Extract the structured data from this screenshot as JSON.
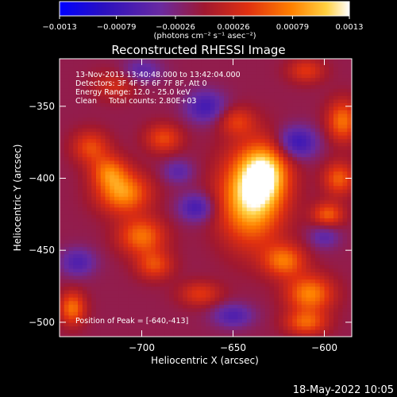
{
  "chart_data": {
    "type": "heatmap",
    "title": "Reconstructed RHESSI Image",
    "xlabel": "Heliocentric X (arcsec)",
    "ylabel": "Heliocentric Y (arcsec)",
    "xlim": [
      -745,
      -585
    ],
    "ylim": [
      -510,
      -317
    ],
    "x_ticks": [
      -700,
      -650,
      -600
    ],
    "y_ticks": [
      -500,
      -450,
      -400,
      -350
    ],
    "x_tick_labels": [
      "−700",
      "−650",
      "−600"
    ],
    "y_tick_labels": [
      "−500",
      "−450",
      "−400",
      "−350"
    ],
    "colorbar": {
      "min": -0.0013,
      "max": 0.0013,
      "ticks": [
        -0.0013,
        -0.00079,
        -0.00026,
        0.00026,
        0.00079,
        0.0013
      ],
      "tick_labels": [
        "−0.0013",
        "−0.00079",
        "−0.00026",
        "0.00026",
        "0.00079",
        "0.0013"
      ],
      "unit_label": "(photons cm⁻² s⁻¹ asec⁻²)",
      "colors": [
        "#0000ff",
        "#4a1b9a",
        "#7a2a9e",
        "#b0201a",
        "#e0401a",
        "#ff8000",
        "#ffc000",
        "#ffffff"
      ]
    },
    "annotations": [
      "13-Nov-2013 13:40:48.000 to 13:42:04.000",
      "Detectors: 3F 4F 5F 6F 7F 8F, Att 0",
      "Energy Range: 12.0 - 25.0 keV",
      "Clean     Total counts: 2.80E+03"
    ],
    "peak_label": "Position of Peak = [-640,-413]",
    "peak": {
      "x": -640,
      "y": -413,
      "value": 0.0013
    },
    "sources": [
      {
        "x": -640,
        "y": -413,
        "value": 0.0013,
        "sx": 12,
        "sy": 22
      },
      {
        "x": -632,
        "y": -395,
        "value": 0.0009,
        "sx": 9,
        "sy": 14
      },
      {
        "x": -710,
        "y": -410,
        "value": 0.00095,
        "sx": 10,
        "sy": 10
      },
      {
        "x": -700,
        "y": -440,
        "value": 0.0008,
        "sx": 9,
        "sy": 9
      },
      {
        "x": -718,
        "y": -395,
        "value": 0.0007,
        "sx": 7,
        "sy": 8
      },
      {
        "x": -688,
        "y": -372,
        "value": 0.0006,
        "sx": 7,
        "sy": 7
      },
      {
        "x": -693,
        "y": -460,
        "value": 0.0006,
        "sx": 7,
        "sy": 7
      },
      {
        "x": -608,
        "y": -480,
        "value": 0.0009,
        "sx": 9,
        "sy": 9
      },
      {
        "x": -622,
        "y": -457,
        "value": 0.0008,
        "sx": 8,
        "sy": 8
      },
      {
        "x": -610,
        "y": -500,
        "value": 0.0007,
        "sx": 8,
        "sy": 6
      },
      {
        "x": -590,
        "y": -360,
        "value": 0.0008,
        "sx": 6,
        "sy": 10
      },
      {
        "x": -592,
        "y": -400,
        "value": 0.0007,
        "sx": 6,
        "sy": 8
      },
      {
        "x": -598,
        "y": -425,
        "value": 0.0007,
        "sx": 6,
        "sy": 6
      },
      {
        "x": -728,
        "y": -378,
        "value": 0.0006,
        "sx": 7,
        "sy": 8
      },
      {
        "x": -738,
        "y": -490,
        "value": 0.0008,
        "sx": 5,
        "sy": 8
      },
      {
        "x": -668,
        "y": -480,
        "value": 0.0005,
        "sx": 8,
        "sy": 6
      },
      {
        "x": -648,
        "y": -360,
        "value": 0.0005,
        "sx": 7,
        "sy": 7
      },
      {
        "x": -610,
        "y": -325,
        "value": 0.0005,
        "sx": 7,
        "sy": 6
      },
      {
        "x": -715,
        "y": -335,
        "value": 0.0004,
        "sx": 8,
        "sy": 7
      },
      {
        "x": -670,
        "y": -420,
        "value": -0.0006,
        "sx": 7,
        "sy": 7
      },
      {
        "x": -615,
        "y": -375,
        "value": -0.0007,
        "sx": 8,
        "sy": 8
      },
      {
        "x": -665,
        "y": -350,
        "value": -0.0006,
        "sx": 8,
        "sy": 8
      },
      {
        "x": -735,
        "y": -458,
        "value": -0.0005,
        "sx": 7,
        "sy": 7
      },
      {
        "x": -650,
        "y": -495,
        "value": -0.0005,
        "sx": 8,
        "sy": 6
      },
      {
        "x": -600,
        "y": -440,
        "value": -0.0004,
        "sx": 6,
        "sy": 6
      },
      {
        "x": -680,
        "y": -395,
        "value": -0.0004,
        "sx": 6,
        "sy": 6
      },
      {
        "x": -700,
        "y": -325,
        "value": -0.0004,
        "sx": 8,
        "sy": 6
      }
    ],
    "background": -0.0001,
    "grid": false
  },
  "footer": {
    "timestamp": "18-May-2022 10:05"
  }
}
